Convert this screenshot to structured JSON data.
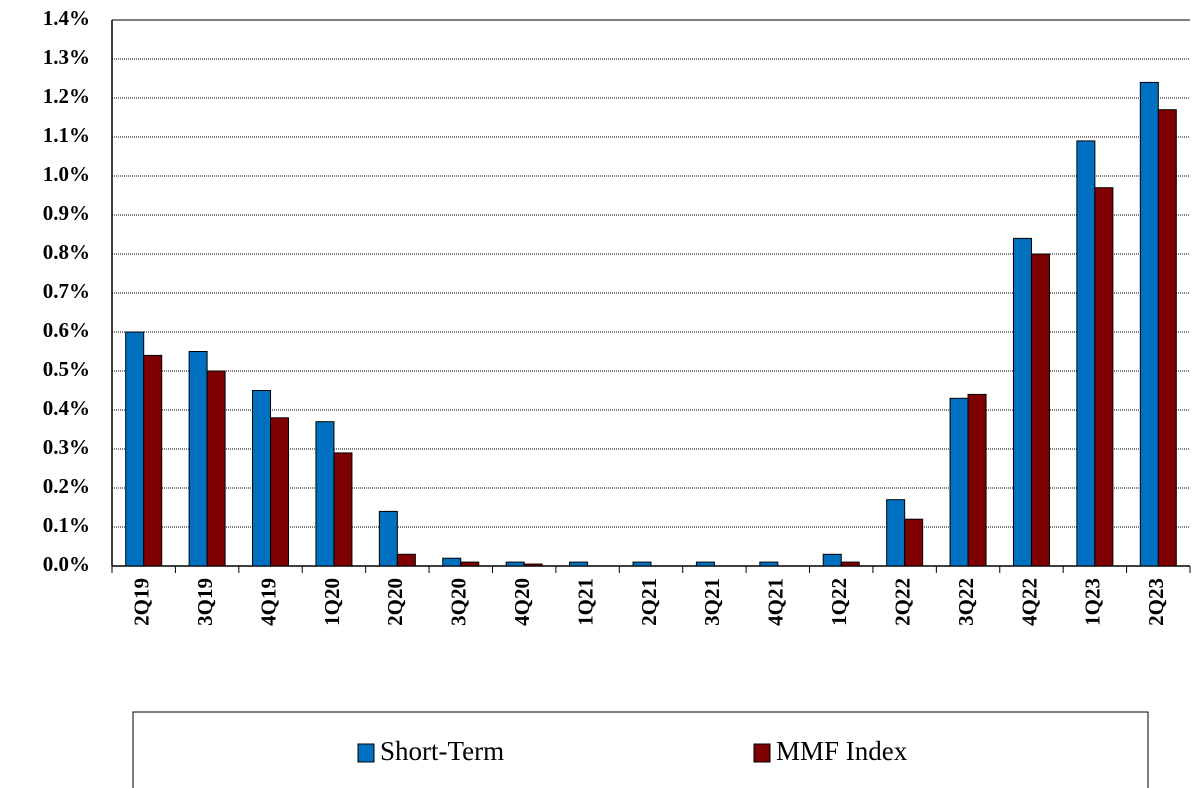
{
  "chart_data": {
    "type": "bar",
    "categories": [
      "2Q19",
      "3Q19",
      "4Q19",
      "1Q20",
      "2Q20",
      "3Q20",
      "4Q20",
      "1Q21",
      "2Q21",
      "3Q21",
      "4Q21",
      "1Q22",
      "2Q22",
      "3Q22",
      "4Q22",
      "1Q23",
      "2Q23"
    ],
    "series": [
      {
        "name": "Short-Term",
        "color": "#0070c0",
        "values": [
          0.6,
          0.55,
          0.45,
          0.37,
          0.14,
          0.02,
          0.01,
          0.01,
          0.01,
          0.01,
          0.01,
          0.03,
          0.17,
          0.43,
          0.84,
          1.09,
          1.24
        ]
      },
      {
        "name": "MMF Index",
        "color": "#7f0000",
        "values": [
          0.54,
          0.5,
          0.38,
          0.29,
          0.03,
          0.01,
          0.005,
          0,
          0,
          0,
          0,
          0.01,
          0.12,
          0.44,
          0.8,
          0.97,
          1.17
        ]
      }
    ],
    "ylim": [
      0,
      1.4
    ],
    "yticks": [
      {
        "value": 0,
        "label": "0.0%"
      },
      {
        "value": 0.1,
        "label": "0.1%"
      },
      {
        "value": 0.2,
        "label": "0.2%"
      },
      {
        "value": 0.3,
        "label": "0.3%"
      },
      {
        "value": 0.4,
        "label": "0.4%"
      },
      {
        "value": 0.5,
        "label": "0.5%"
      },
      {
        "value": 0.6,
        "label": "0.6%"
      },
      {
        "value": 0.7,
        "label": "0.7%"
      },
      {
        "value": 0.8,
        "label": "0.8%"
      },
      {
        "value": 0.9,
        "label": "0.9%"
      },
      {
        "value": 1.0,
        "label": "1.0%"
      },
      {
        "value": 1.1,
        "label": "1.1%"
      },
      {
        "value": 1.2,
        "label": "1.2%"
      },
      {
        "value": 1.3,
        "label": "1.3%"
      },
      {
        "value": 1.4,
        "label": "1.4%"
      }
    ],
    "grid": true,
    "legend": "bottom"
  }
}
